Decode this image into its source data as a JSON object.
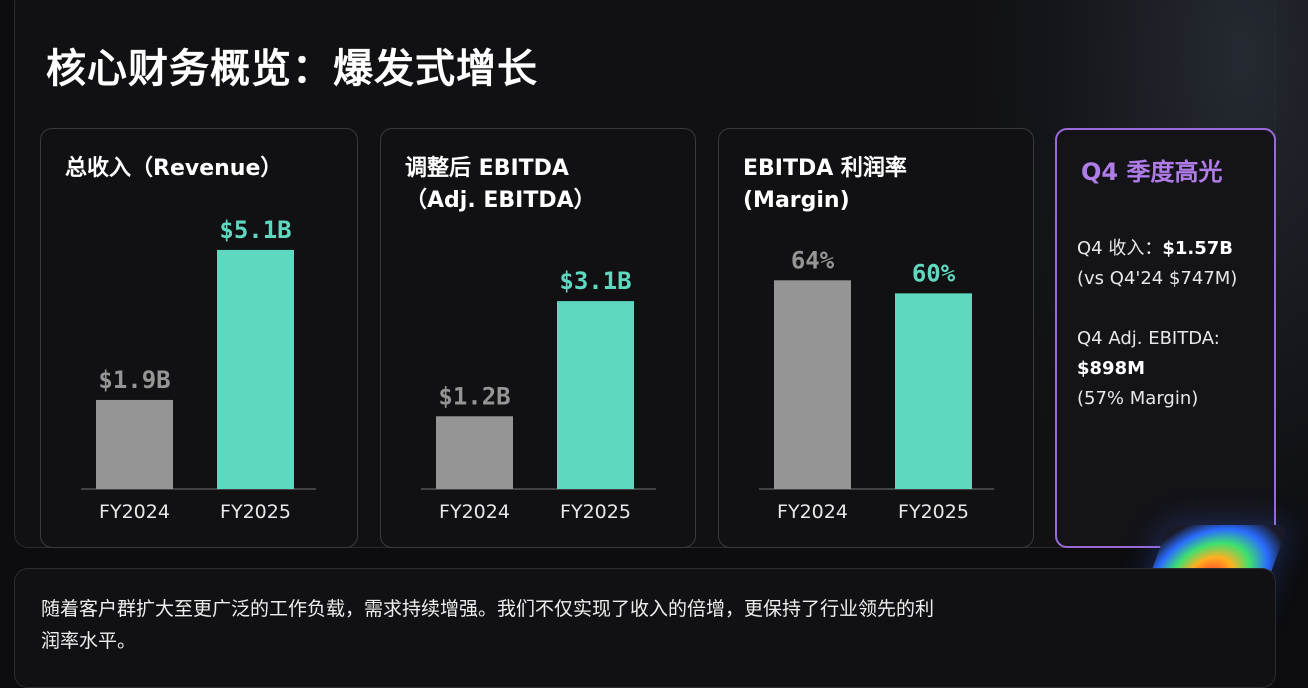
{
  "title": "核心财务概览：爆发式增长",
  "colors": {
    "prior": "#959595",
    "current": "#5fd8c0",
    "highlight": "#b07ce8",
    "background": "#111114"
  },
  "chart_data": [
    {
      "type": "bar",
      "title": "总收入（Revenue）",
      "categories": [
        "FY2024",
        "FY2025"
      ],
      "values": [
        1.9,
        5.1
      ],
      "labels": [
        "$1.9B",
        "$5.1B"
      ],
      "unit": "B USD",
      "ylim": [
        0,
        6.4
      ],
      "grid": false
    },
    {
      "type": "bar",
      "title": "调整后 EBITDA（Adj. EBITDA）",
      "categories": [
        "FY2024",
        "FY2025"
      ],
      "values": [
        1.2,
        3.1
      ],
      "labels": [
        "$1.2B",
        "$3.1B"
      ],
      "unit": "B USD",
      "ylim": [
        0,
        4.95
      ],
      "grid": false
    },
    {
      "type": "bar",
      "title": "EBITDA 利润率（Margin）",
      "categories": [
        "FY2024",
        "FY2025"
      ],
      "values": [
        64,
        60
      ],
      "labels": [
        "64%",
        "60%"
      ],
      "unit": "%",
      "ylim": [
        0,
        92
      ],
      "grid": false
    }
  ],
  "titles_lines": [
    [
      "总收入（Revenue）"
    ],
    [
      "调整后 EBITDA",
      "（Adj. EBITDA）"
    ],
    [
      "EBITDA 利润率",
      "(Margin)"
    ]
  ],
  "highlight": {
    "title": "Q4 季度高光",
    "q4_rev_label": "Q4 收入：",
    "q4_rev_value": "$1.57B",
    "q4_rev_compare": "(vs Q4'24 $747M)",
    "q4_ebitda_label": "Q4 Adj. EBITDA:",
    "q4_ebitda_value": "$898M",
    "q4_ebitda_margin": "(57% Margin)"
  },
  "note": "随着客户群扩大至更广泛的工作负载，需求持续增强。我们不仅实现了收入的倍增，更保持了行业领先的利润率水平。"
}
